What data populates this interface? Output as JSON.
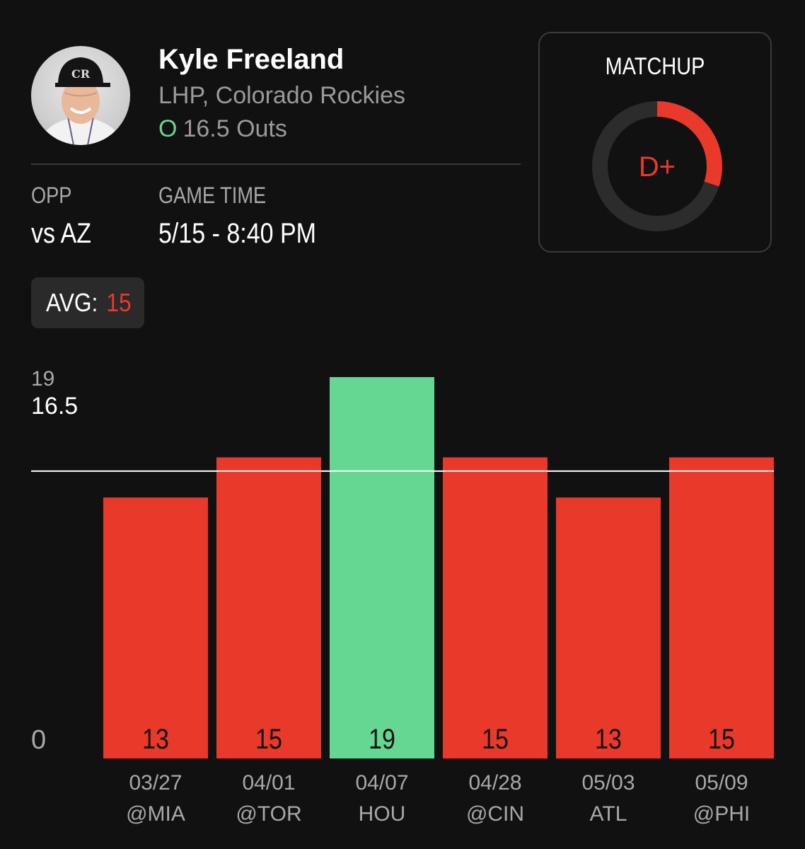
{
  "player": {
    "name": "Kyle Freeland",
    "subtitle": "LHP, Colorado Rockies",
    "prop_side": "O",
    "prop_text": "16.5 Outs"
  },
  "info": {
    "opp_label": "OPP",
    "opp_value": "vs AZ",
    "time_label": "GAME TIME",
    "time_value": "5/15 - 8:40 PM"
  },
  "matchup": {
    "title": "MATCHUP",
    "grade": "D+",
    "grade_fraction": 0.3
  },
  "avg": {
    "label": "AVG:",
    "value": "15"
  },
  "colors": {
    "over": "#66d693",
    "under": "#e8392a",
    "background": "#111111",
    "ring_track": "#2c2c2c"
  },
  "chart_data": {
    "type": "bar",
    "categories": [
      "03/27",
      "04/01",
      "04/07",
      "04/28",
      "05/03",
      "05/09"
    ],
    "opponents": [
      "@MIA",
      "@TOR",
      "HOU",
      "@CIN",
      "ATL",
      "@PHI"
    ],
    "values": [
      13,
      15,
      19,
      15,
      13,
      15
    ],
    "line": 16.5,
    "ylim": [
      0,
      19
    ],
    "ytick_labels": [
      "0",
      "19"
    ],
    "line_label": "16.5"
  }
}
